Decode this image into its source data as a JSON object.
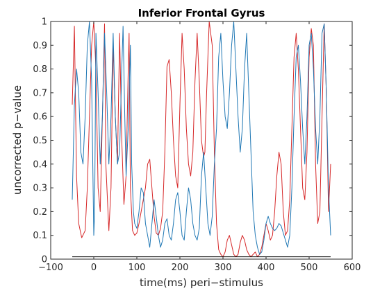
{
  "chart_data": {
    "type": "line",
    "title": "Inferior Frontal Gyrus",
    "xlabel": "time(ms) peri−stimulus",
    "ylabel": "uncorrected p−value",
    "xlim": [
      -100,
      600
    ],
    "ylim": [
      0,
      1
    ],
    "grid": false,
    "legend": "none",
    "x_ticks": [
      {
        "value": -100,
        "label": "−100"
      },
      {
        "value": 0,
        "label": "0"
      },
      {
        "value": 100,
        "label": "100"
      },
      {
        "value": 200,
        "label": "200"
      },
      {
        "value": 300,
        "label": "300"
      },
      {
        "value": 400,
        "label": "400"
      },
      {
        "value": 500,
        "label": "500"
      },
      {
        "value": 600,
        "label": "600"
      }
    ],
    "y_ticks": [
      {
        "value": 0,
        "label": "0"
      },
      {
        "value": 0.1,
        "label": "0.1"
      },
      {
        "value": 0.2,
        "label": "0.2"
      },
      {
        "value": 0.3,
        "label": "0.3"
      },
      {
        "value": 0.4,
        "label": "0.4"
      },
      {
        "value": 0.5,
        "label": "0.5"
      },
      {
        "value": 0.6,
        "label": "0.6"
      },
      {
        "value": 0.7,
        "label": "0.7"
      },
      {
        "value": 0.8,
        "label": "0.8"
      },
      {
        "value": 0.9,
        "label": "0.9"
      },
      {
        "value": 1,
        "label": "1"
      }
    ],
    "series": [
      {
        "color": "#d62728",
        "x": [
          -50,
          -45,
          -40,
          -35,
          -28,
          -20,
          -15,
          -10,
          -5,
          0,
          5,
          10,
          15,
          20,
          25,
          28,
          35,
          40,
          45,
          50,
          55,
          60,
          65,
          70,
          75,
          80,
          82,
          85,
          90,
          95,
          100,
          105,
          110,
          115,
          120,
          125,
          130,
          135,
          140,
          145,
          150,
          155,
          160,
          165,
          170,
          175,
          180,
          185,
          190,
          195,
          200,
          205,
          210,
          215,
          220,
          225,
          230,
          235,
          240,
          245,
          250,
          255,
          258,
          262,
          268,
          275,
          280,
          285,
          290,
          295,
          300,
          305,
          310,
          315,
          320,
          325,
          330,
          335,
          340,
          345,
          350,
          355,
          360,
          365,
          370,
          375,
          380,
          385,
          390,
          395,
          400,
          405,
          410,
          415,
          420,
          425,
          430,
          435,
          440,
          445,
          450,
          455,
          460,
          465,
          470,
          475,
          480,
          485,
          490,
          495,
          500,
          505,
          510,
          515,
          520,
          525,
          530,
          535,
          540,
          545,
          550
        ],
        "values": [
          0.65,
          0.98,
          0.35,
          0.15,
          0.09,
          0.12,
          0.3,
          0.6,
          0.9,
          1.0,
          0.8,
          0.3,
          0.2,
          0.6,
          0.99,
          0.4,
          0.12,
          0.3,
          0.9,
          0.6,
          0.4,
          0.95,
          0.5,
          0.23,
          0.35,
          0.8,
          0.95,
          0.3,
          0.12,
          0.1,
          0.11,
          0.15,
          0.2,
          0.25,
          0.3,
          0.4,
          0.42,
          0.3,
          0.18,
          0.11,
          0.1,
          0.13,
          0.2,
          0.45,
          0.81,
          0.84,
          0.7,
          0.5,
          0.35,
          0.3,
          0.65,
          0.95,
          0.8,
          0.55,
          0.4,
          0.35,
          0.45,
          0.75,
          0.95,
          0.75,
          0.5,
          0.43,
          0.45,
          0.7,
          1.0,
          0.9,
          0.45,
          0.15,
          0.04,
          0.02,
          0.01,
          0.03,
          0.08,
          0.1,
          0.06,
          0.02,
          0.01,
          0.02,
          0.07,
          0.1,
          0.08,
          0.04,
          0.02,
          0.01,
          0.02,
          0.03,
          0.01,
          0.02,
          0.05,
          0.1,
          0.15,
          0.12,
          0.08,
          0.1,
          0.2,
          0.35,
          0.45,
          0.4,
          0.2,
          0.1,
          0.12,
          0.25,
          0.55,
          0.85,
          0.95,
          0.8,
          0.55,
          0.3,
          0.25,
          0.45,
          0.85,
          0.97,
          0.9,
          0.4,
          0.15,
          0.2,
          0.6,
          0.99,
          0.7,
          0.2,
          0.4
        ]
      },
      {
        "color": "#1f77b4",
        "x": [
          -50,
          -45,
          -40,
          -35,
          -30,
          -25,
          -20,
          -15,
          -10,
          -5,
          0,
          2,
          5,
          10,
          15,
          20,
          25,
          30,
          35,
          40,
          45,
          50,
          55,
          60,
          65,
          68,
          72,
          75,
          80,
          85,
          88,
          92,
          95,
          100,
          105,
          110,
          115,
          120,
          125,
          130,
          135,
          140,
          145,
          150,
          155,
          160,
          165,
          170,
          175,
          180,
          185,
          190,
          195,
          200,
          205,
          210,
          215,
          220,
          225,
          230,
          235,
          240,
          245,
          250,
          255,
          260,
          265,
          270,
          275,
          280,
          285,
          290,
          295,
          300,
          305,
          310,
          315,
          320,
          325,
          330,
          335,
          340,
          345,
          350,
          355,
          360,
          365,
          370,
          375,
          380,
          385,
          390,
          395,
          400,
          405,
          410,
          415,
          420,
          425,
          430,
          435,
          440,
          445,
          450,
          455,
          460,
          465,
          470,
          475,
          480,
          485,
          490,
          495,
          500,
          505,
          510,
          515,
          520,
          525,
          530,
          535,
          540,
          545,
          550
        ],
        "values": [
          0.25,
          0.65,
          0.8,
          0.7,
          0.45,
          0.4,
          0.6,
          0.9,
          1.0,
          0.75,
          0.1,
          0.2,
          0.95,
          0.7,
          0.4,
          0.6,
          0.95,
          0.7,
          0.4,
          0.6,
          0.95,
          0.6,
          0.4,
          0.45,
          0.8,
          0.98,
          0.6,
          0.35,
          0.55,
          0.9,
          0.4,
          0.2,
          0.15,
          0.13,
          0.2,
          0.3,
          0.28,
          0.15,
          0.1,
          0.05,
          0.15,
          0.25,
          0.18,
          0.1,
          0.05,
          0.08,
          0.15,
          0.17,
          0.1,
          0.08,
          0.15,
          0.25,
          0.28,
          0.2,
          0.1,
          0.08,
          0.2,
          0.3,
          0.25,
          0.15,
          0.1,
          0.08,
          0.13,
          0.35,
          0.45,
          0.3,
          0.15,
          0.1,
          0.18,
          0.4,
          0.55,
          0.85,
          0.95,
          0.75,
          0.6,
          0.55,
          0.7,
          0.9,
          1.0,
          0.8,
          0.6,
          0.45,
          0.55,
          0.8,
          0.95,
          0.7,
          0.45,
          0.2,
          0.1,
          0.05,
          0.02,
          0.03,
          0.08,
          0.15,
          0.18,
          0.15,
          0.13,
          0.12,
          0.13,
          0.15,
          0.14,
          0.11,
          0.08,
          0.05,
          0.1,
          0.3,
          0.6,
          0.85,
          0.9,
          0.75,
          0.55,
          0.4,
          0.6,
          0.9,
          0.95,
          0.8,
          0.55,
          0.4,
          0.6,
          0.95,
          0.99,
          0.7,
          0.3,
          0.1
        ]
      },
      {
        "color": "#000000",
        "x": [
          -50,
          550
        ],
        "values": [
          0.01,
          0.01
        ]
      }
    ]
  }
}
